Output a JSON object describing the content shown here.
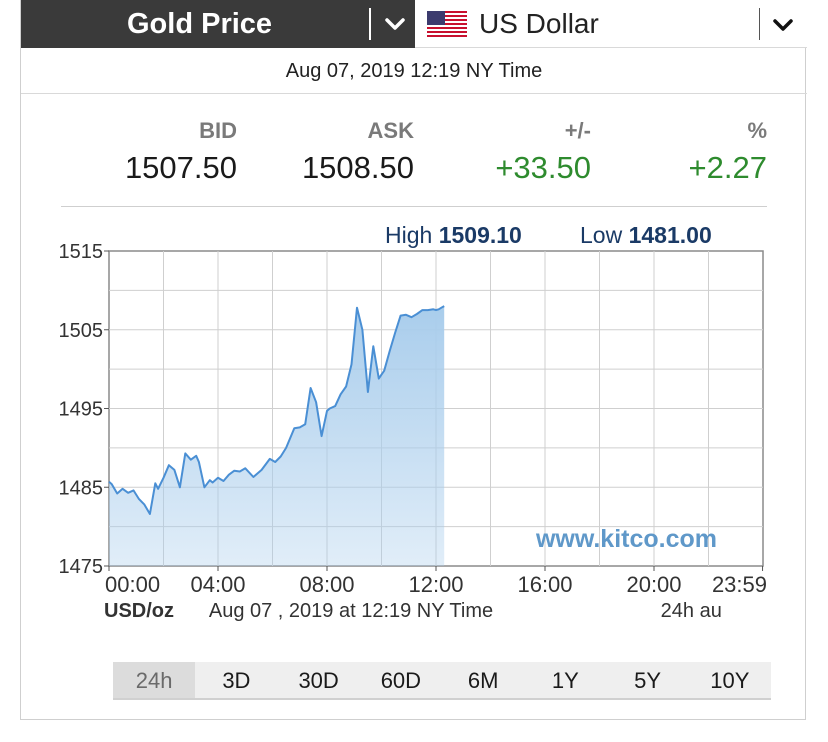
{
  "header": {
    "title": "Gold Price",
    "currency": "US Dollar"
  },
  "timestamp": "Aug 07, 2019 12:19 NY Time",
  "quote": {
    "bid_label": "BID",
    "bid": "1507.50",
    "ask_label": "ASK",
    "ask": "1508.50",
    "change_label": "+/-",
    "change": "+33.50",
    "pct_label": "%",
    "pct": "+2.27"
  },
  "highlow": {
    "high_label": "High",
    "high": "1509.10",
    "low_label": "Low",
    "low": "1481.00"
  },
  "chart_data": {
    "type": "area",
    "ylim": [
      1475,
      1515
    ],
    "y_ticks": [
      "1515",
      "1505",
      "1495",
      "1485",
      "1475"
    ],
    "x_ticks": [
      "00:00",
      "04:00",
      "08:00",
      "12:00",
      "16:00",
      "20:00",
      "23:59"
    ],
    "x_range_hours": [
      0,
      24
    ],
    "ylabel": "USD/oz",
    "footer_date": "Aug 07 , 2019 at 12:19 NY Time",
    "footer_right": "24h au",
    "watermark": "www.kitco.com",
    "line_color": "#4a8fd4",
    "fill_color": "#a9cdec",
    "series": [
      {
        "x": [
          0,
          0.1,
          0.3,
          0.5,
          0.7,
          0.9,
          1.1,
          1.3,
          1.5,
          1.7,
          1.8,
          2.0,
          2.2,
          2.4,
          2.6,
          2.8,
          3.0,
          3.2,
          3.3,
          3.5,
          3.7,
          3.8,
          4.0,
          4.2,
          4.4,
          4.6,
          4.8,
          5.0,
          5.3,
          5.6,
          5.9,
          6.1,
          6.3,
          6.5,
          6.8,
          7.0,
          7.2,
          7.4,
          7.6,
          7.8,
          8.0,
          8.1,
          8.3,
          8.5,
          8.7,
          8.9,
          9.1,
          9.3,
          9.5,
          9.7,
          9.9,
          10.0,
          10.1,
          10.3,
          10.5,
          10.7,
          10.9,
          11.1,
          11.3,
          11.5,
          11.7,
          11.9,
          12.0,
          12.1,
          12.2,
          12.3
        ],
        "y": [
          1485.7,
          1485.4,
          1484.2,
          1484.8,
          1484.3,
          1484.6,
          1483.5,
          1482.8,
          1481.6,
          1485.5,
          1484.8,
          1486.2,
          1487.8,
          1487.2,
          1485.0,
          1489.3,
          1488.5,
          1489.0,
          1488.2,
          1485.0,
          1485.9,
          1485.6,
          1486.2,
          1485.8,
          1486.6,
          1487.1,
          1487.0,
          1487.4,
          1486.3,
          1487.2,
          1488.6,
          1488.2,
          1488.9,
          1490.0,
          1492.5,
          1492.6,
          1493.0,
          1497.6,
          1495.8,
          1491.5,
          1494.7,
          1495.0,
          1495.3,
          1496.8,
          1497.8,
          1500.6,
          1507.8,
          1505.0,
          1497.1,
          1502.9,
          1498.8,
          1499.3,
          1499.8,
          1502.3,
          1504.6,
          1506.8,
          1506.9,
          1506.6,
          1507.0,
          1507.5,
          1507.5,
          1507.6,
          1507.5,
          1507.6,
          1507.8,
          1508.0
        ]
      }
    ]
  },
  "tabs": [
    "24h",
    "3D",
    "30D",
    "60D",
    "6M",
    "1Y",
    "5Y",
    "10Y"
  ],
  "active_tab": "24h"
}
